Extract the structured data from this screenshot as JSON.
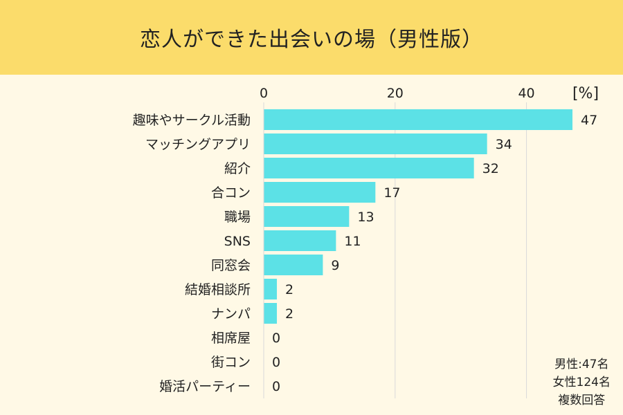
{
  "title": "恋人ができた出会いの場（男性版）",
  "unit": "[%]",
  "notes": [
    "男性:47名",
    "女性124名",
    "複数回答"
  ],
  "colors": {
    "bar": "#5ce1e6",
    "header": "#fbdc6b",
    "background": "#fff9e6",
    "grid": "#d9d9d9"
  },
  "chart_data": {
    "type": "bar",
    "orientation": "horizontal",
    "title": "恋人ができた出会いの場（男性版）",
    "xlabel": "[%]",
    "ylabel": "",
    "xlim": [
      0,
      47
    ],
    "xticks": [
      0,
      20,
      40
    ],
    "grid": true,
    "categories": [
      "趣味やサークル活動",
      "マッチングアプリ",
      "紹介",
      "合コン",
      "職場",
      "SNS",
      "同窓会",
      "結婚相談所",
      "ナンパ",
      "相席屋",
      "街コン",
      "婚活パーティー"
    ],
    "values": [
      47,
      34,
      32,
      17,
      13,
      11,
      9,
      2,
      2,
      0,
      0,
      0
    ]
  }
}
